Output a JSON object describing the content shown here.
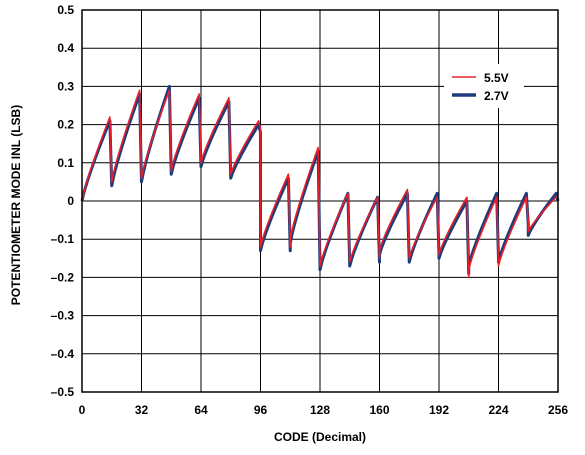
{
  "chart_data": {
    "type": "line",
    "xlabel": "CODE (Decimal)",
    "ylabel": "POTENTIOMETER MODE INL (LSB)",
    "xlim": [
      0,
      256
    ],
    "ylim": [
      -0.5,
      0.5
    ],
    "x_ticks": [
      0,
      32,
      64,
      96,
      128,
      160,
      192,
      224,
      256
    ],
    "x_tick_labels": [
      "0",
      "32",
      "64",
      "96",
      "128",
      "160",
      "192",
      "224",
      "256"
    ],
    "y_ticks": [
      0.5,
      0.4,
      0.3,
      0.2,
      0.1,
      0,
      -0.1,
      -0.2,
      -0.3,
      -0.4,
      -0.5
    ],
    "y_tick_labels": [
      "0.5",
      "0.4",
      "0.3",
      "0.2",
      "0.1",
      "0",
      "–0.1",
      "–0.2",
      "–0.3",
      "–0.4",
      "–0.5"
    ],
    "grid": true,
    "legend_position": "top-right",
    "segment_length": 16,
    "series": [
      {
        "name": "5.5V",
        "color": "#e8202a",
        "style": "thin",
        "segments": [
          [
            0.0,
            0.22,
            0.05
          ],
          [
            0.05,
            0.29,
            0.06
          ],
          [
            0.06,
            0.29,
            0.08
          ],
          [
            0.08,
            0.28,
            0.1
          ],
          [
            0.1,
            0.27,
            0.07
          ],
          [
            0.07,
            0.21,
            0.19
          ],
          [
            -0.12,
            0.07,
            -0.12
          ],
          [
            -0.1,
            0.14,
            -0.16
          ],
          [
            -0.17,
            0.02,
            -0.16
          ],
          [
            -0.16,
            0.01,
            -0.15
          ],
          [
            -0.13,
            0.03,
            -0.15
          ],
          [
            -0.15,
            0.01,
            -0.13
          ],
          [
            -0.14,
            0.01,
            -0.2
          ],
          [
            -0.18,
            0.01,
            -0.16
          ],
          [
            -0.17,
            0.01,
            -0.05
          ],
          [
            -0.08,
            0.01,
            0.01
          ]
        ]
      },
      {
        "name": "2.7V",
        "color": "#1f3b7a",
        "style": "thick",
        "segments": [
          [
            0.0,
            0.21,
            0.04
          ],
          [
            0.04,
            0.28,
            0.05
          ],
          [
            0.05,
            0.3,
            0.07
          ],
          [
            0.07,
            0.27,
            0.09
          ],
          [
            0.09,
            0.26,
            0.06
          ],
          [
            0.06,
            0.2,
            0.18
          ],
          [
            -0.13,
            0.06,
            -0.13
          ],
          [
            -0.11,
            0.13,
            -0.17
          ],
          [
            -0.18,
            0.02,
            -0.17
          ],
          [
            -0.17,
            0.01,
            -0.16
          ],
          [
            -0.14,
            0.02,
            -0.16
          ],
          [
            -0.16,
            0.02,
            -0.14
          ],
          [
            -0.15,
            0.0,
            -0.19
          ],
          [
            -0.17,
            0.02,
            -0.15
          ],
          [
            -0.16,
            0.02,
            -0.06
          ],
          [
            -0.09,
            0.02,
            0.0
          ]
        ]
      }
    ]
  }
}
